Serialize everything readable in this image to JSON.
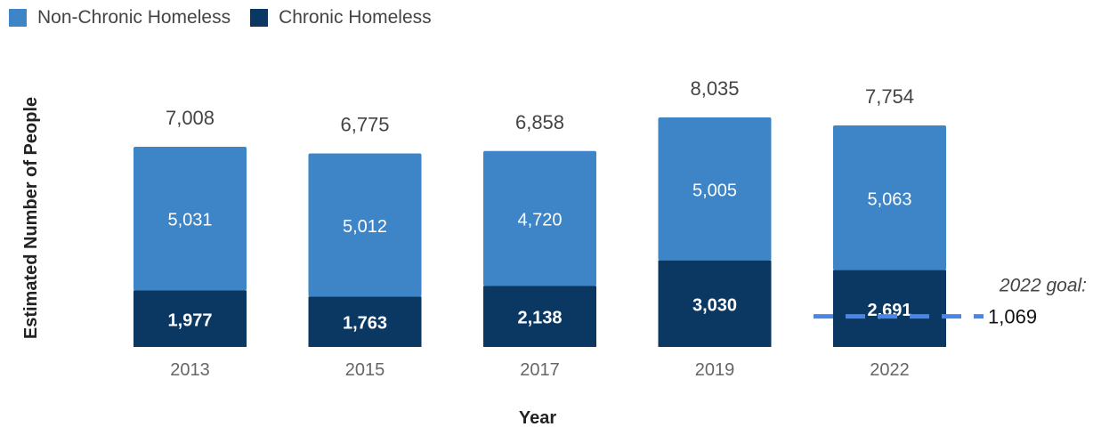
{
  "chart_data": {
    "type": "bar",
    "stacked": true,
    "categories": [
      "2013",
      "2015",
      "2017",
      "2019",
      "2022"
    ],
    "series": [
      {
        "name": "Chronic Homeless",
        "values": [
          1977,
          1763,
          2138,
          3030,
          2691
        ],
        "color": "#0b3763"
      },
      {
        "name": "Non-Chronic Homeless",
        "values": [
          5031,
          5012,
          4720,
          5005,
          5063
        ],
        "color": "#3d85c6"
      }
    ],
    "totals": [
      7008,
      6775,
      6858,
      8035,
      7754
    ],
    "value_labels": {
      "chronic": [
        "1,977",
        "1,763",
        "2,138",
        "3,030",
        "2,691"
      ],
      "non_chronic": [
        "5,031",
        "5,012",
        "4,720",
        "5,005",
        "5,063"
      ],
      "totals": [
        "7,008",
        "6,775",
        "6,858",
        "8,035",
        "7,754"
      ]
    },
    "ylabel": "Estimated Number of People",
    "xlabel": "Year",
    "legend_position": "top-left",
    "grid": false,
    "annotation": {
      "category": "2022",
      "value": 1069,
      "label": "2022 goal:",
      "value_label": "1,069",
      "color": "#4a86e8"
    }
  },
  "legend": {
    "items": [
      {
        "name": "Non-Chronic Homeless",
        "color": "#3d85c6"
      },
      {
        "name": "Chronic Homeless",
        "color": "#0b3763"
      }
    ]
  }
}
